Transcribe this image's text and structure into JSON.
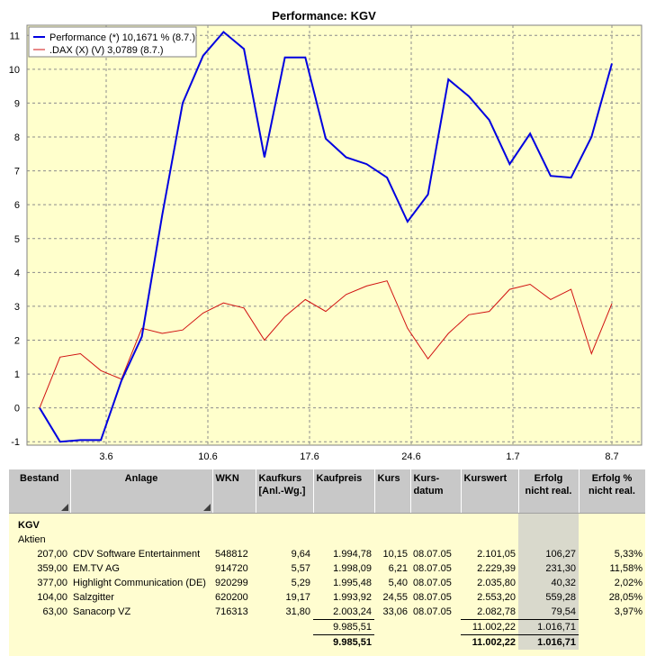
{
  "chart": {
    "title": "Performance: KGV",
    "legend": [
      {
        "label": "Performance (*) 10,1671 % (8.7.)",
        "color": "#0000e0"
      },
      {
        "label": ".DAX (X) (V) 3,0789 (8.7.)",
        "color": "#d01010"
      }
    ]
  },
  "chart_data": {
    "type": "line",
    "title": "Performance: KGV",
    "xlabel": "",
    "ylabel": "",
    "ylim": [
      -1.1,
      11.3
    ],
    "y_ticks": [
      -1,
      0,
      1,
      2,
      3,
      4,
      5,
      6,
      7,
      8,
      9,
      10,
      11
    ],
    "x_tick_labels": [
      "3.6",
      "10.6",
      "17.6",
      "24.6",
      "1.7",
      "8.7"
    ],
    "x_tick_index": [
      3,
      8,
      13,
      18,
      23,
      28
    ],
    "grid": true,
    "legend_position": "top-left",
    "series": [
      {
        "name": "Performance (*) 10,1671 % (8.7.)",
        "color": "#0000e0",
        "values": [
          0.0,
          -1.0,
          -0.95,
          -0.95,
          0.8,
          2.1,
          5.7,
          9.0,
          10.4,
          11.1,
          10.6,
          7.4,
          10.35,
          10.35,
          7.95,
          7.4,
          7.2,
          6.8,
          5.5,
          6.3,
          9.7,
          9.2,
          8.5,
          7.2,
          8.1,
          6.85,
          6.8,
          8.0,
          10.17
        ]
      },
      {
        "name": ".DAX (X) (V) 3,0789 (8.7.)",
        "color": "#d01010",
        "values": [
          0.0,
          1.5,
          1.6,
          1.1,
          0.85,
          2.35,
          2.2,
          2.3,
          2.8,
          3.1,
          2.95,
          2.0,
          2.7,
          3.2,
          2.85,
          3.35,
          3.6,
          3.75,
          2.35,
          1.45,
          2.2,
          2.75,
          2.85,
          3.5,
          3.65,
          3.2,
          3.5,
          1.6,
          3.08
        ]
      }
    ]
  },
  "table": {
    "headers": {
      "bestand": "Bestand",
      "anlage": "Anlage",
      "wkn": "WKN",
      "kaufkurs": "Kaufkurs [Anl.-Wg.]",
      "kaufpreis": "Kaufpreis",
      "kurs": "Kurs",
      "kursdatum": "Kurs-datum",
      "kurswert": "Kurswert",
      "erfolg": "Erfolg nicht real.",
      "erfolg_pct": "Erfolg % nicht real."
    },
    "group": "KGV",
    "subgroup": "Aktien",
    "rows": [
      {
        "bestand": "207,00",
        "anlage": "CDV Software Entertainment",
        "wkn": "548812",
        "kaufkurs": "9,64",
        "kaufpreis": "1.994,78",
        "kurs": "10,15",
        "kursdatum": "08.07.05",
        "kurswert": "2.101,05",
        "erfolg": "106,27",
        "erfolg_pct": "5,33%"
      },
      {
        "bestand": "359,00",
        "anlage": "EM.TV AG",
        "wkn": "914720",
        "kaufkurs": "5,57",
        "kaufpreis": "1.998,09",
        "kurs": "6,21",
        "kursdatum": "08.07.05",
        "kurswert": "2.229,39",
        "erfolg": "231,30",
        "erfolg_pct": "11,58%"
      },
      {
        "bestand": "377,00",
        "anlage": "Highlight Communication (DE)",
        "wkn": "920299",
        "kaufkurs": "5,29",
        "kaufpreis": "1.995,48",
        "kurs": "5,40",
        "kursdatum": "08.07.05",
        "kurswert": "2.035,80",
        "erfolg": "40,32",
        "erfolg_pct": "2,02%"
      },
      {
        "bestand": "104,00",
        "anlage": "Salzgitter",
        "wkn": "620200",
        "kaufkurs": "19,17",
        "kaufpreis": "1.993,92",
        "kurs": "24,55",
        "kursdatum": "08.07.05",
        "kurswert": "2.553,20",
        "erfolg": "559,28",
        "erfolg_pct": "28,05%"
      },
      {
        "bestand": "63,00",
        "anlage": "Sanacorp VZ",
        "wkn": "716313",
        "kaufkurs": "31,80",
        "kaufpreis": "2.003,24",
        "kurs": "33,06",
        "kursdatum": "08.07.05",
        "kurswert": "2.082,78",
        "erfolg": "79,54",
        "erfolg_pct": "3,97%"
      }
    ],
    "subtotal": {
      "kaufpreis": "9.985,51",
      "kurswert": "11.002,22",
      "erfolg": "1.016,71"
    },
    "total": {
      "kaufpreis": "9.985,51",
      "kurswert": "11.002,22",
      "erfolg": "1.016,71"
    }
  }
}
